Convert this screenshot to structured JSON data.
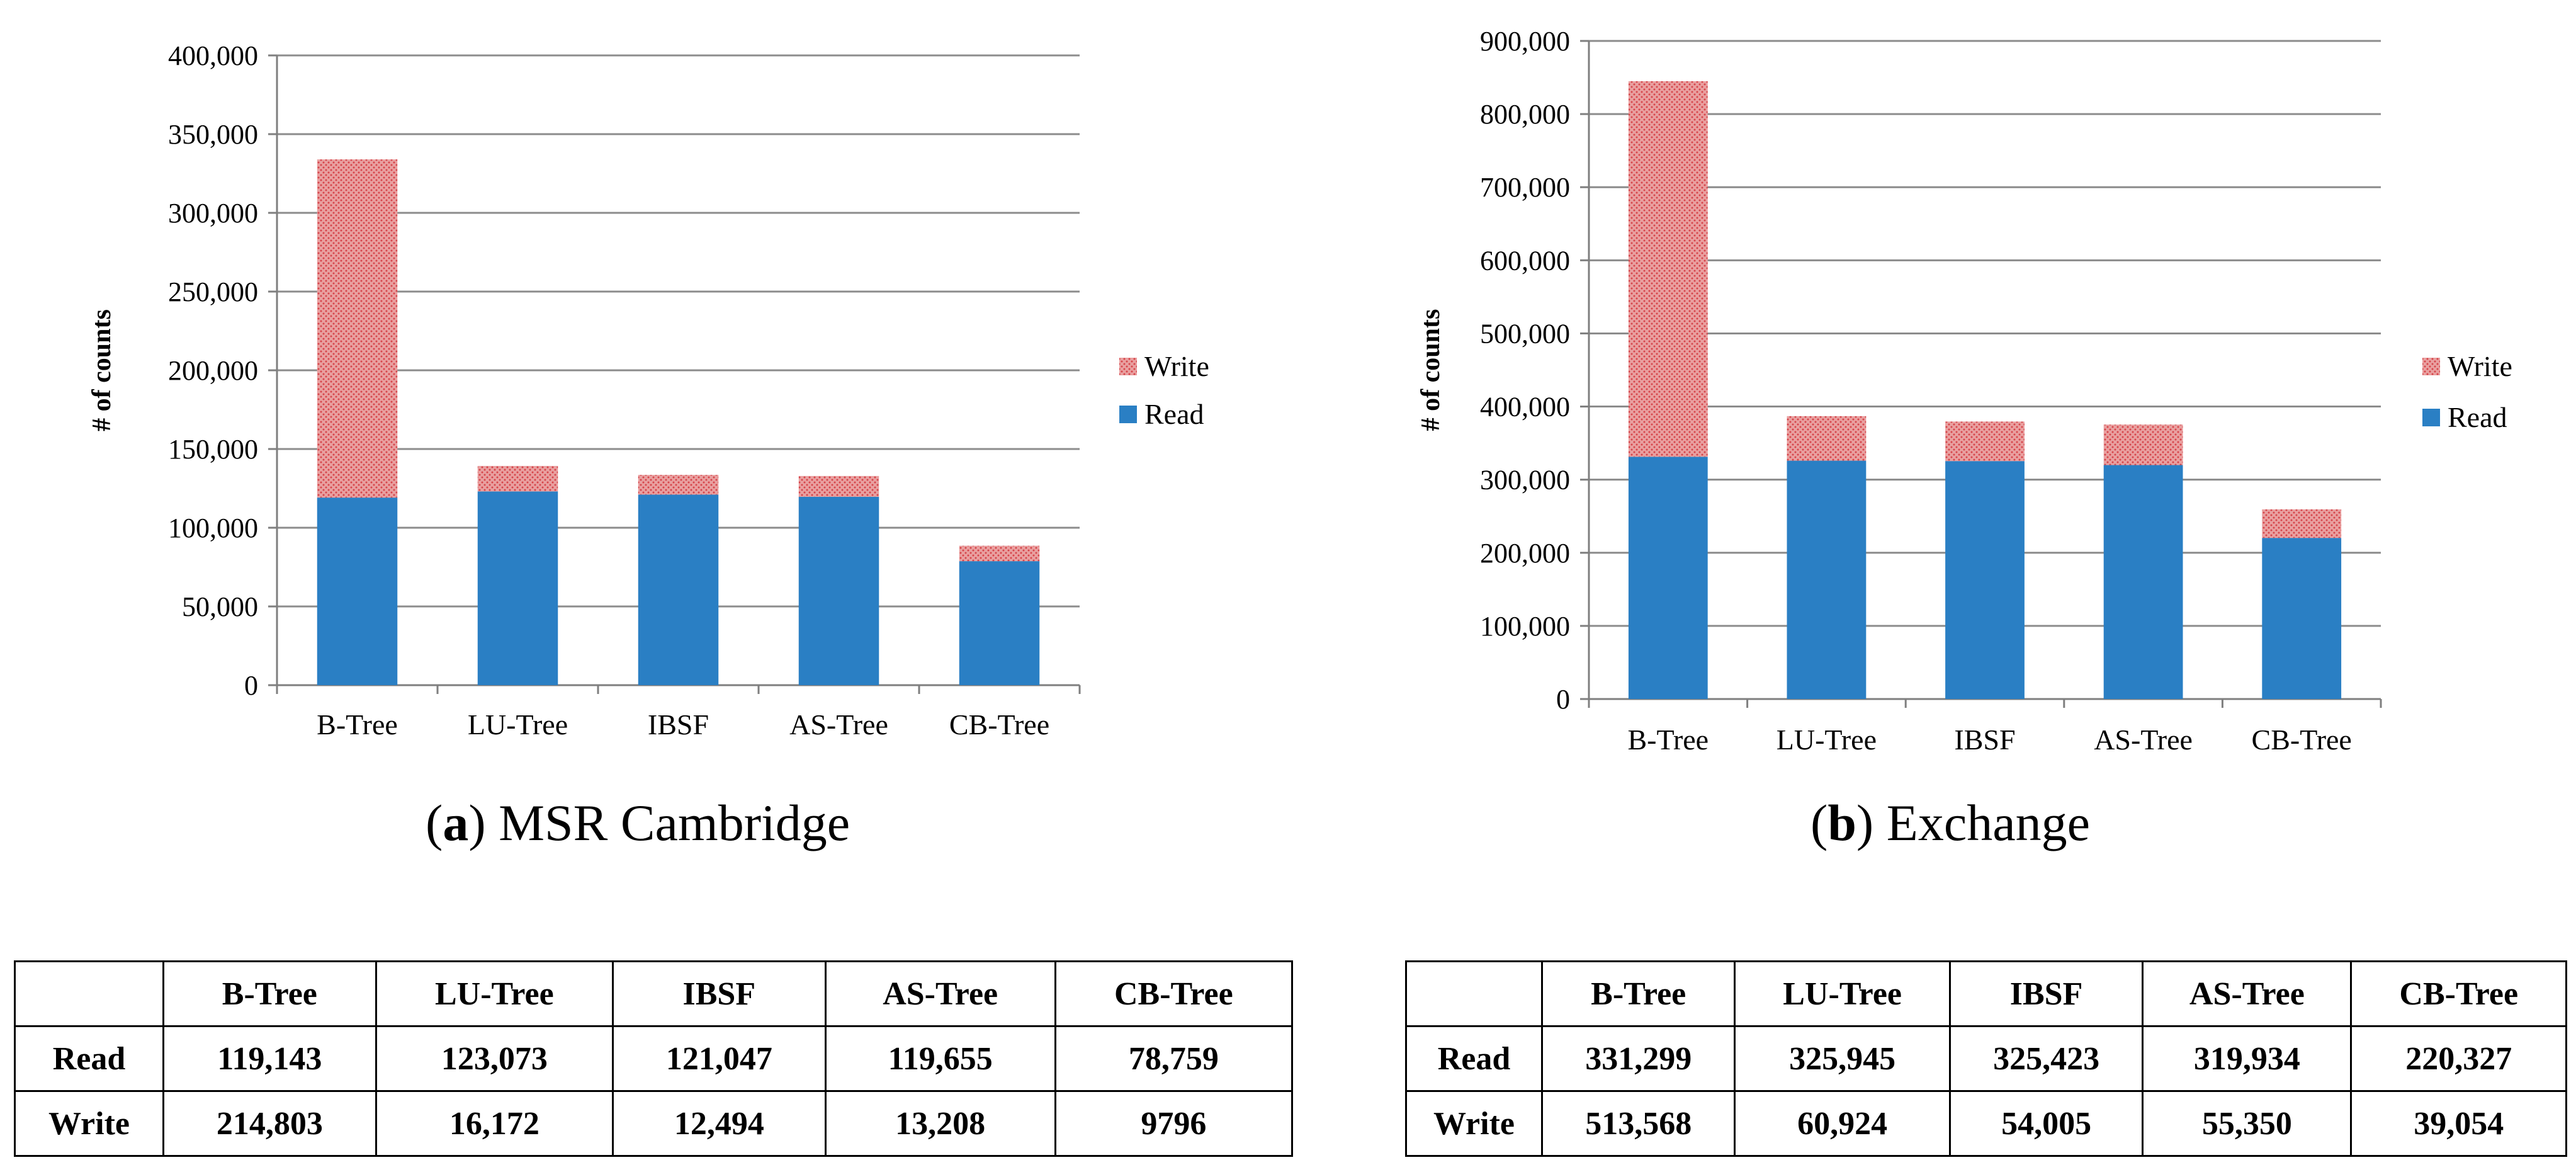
{
  "colors": {
    "read": "#2a7fc4",
    "write_fill": "#e9a0a0",
    "write_dots": "#d6454b",
    "grid": "#8c8c8c",
    "axis": "#7f7f7f"
  },
  "chart_data": [
    {
      "type": "bar",
      "stacked": true,
      "caption_letter": "a",
      "caption_text": ") MSR Cambridge",
      "categories": [
        "B-Tree",
        "LU-Tree",
        "IBSF",
        "AS-Tree",
        "CB-Tree"
      ],
      "series": [
        {
          "name": "Read",
          "values": [
            119143,
            123073,
            121047,
            119655,
            78759
          ]
        },
        {
          "name": "Write",
          "values": [
            214803,
            16172,
            12494,
            13208,
            9796
          ]
        }
      ],
      "ylabel": "# of counts",
      "ylim": [
        0,
        400000
      ],
      "yticks": [
        "0",
        "50,000",
        "100,000",
        "150,000",
        "200,000",
        "250,000",
        "300,000",
        "350,000",
        "400,000"
      ],
      "legend": [
        "Write",
        "Read"
      ],
      "legend_position": "right",
      "grid": true
    },
    {
      "type": "bar",
      "stacked": true,
      "caption_letter": "b",
      "caption_text": ") Exchange",
      "categories": [
        "B-Tree",
        "LU-Tree",
        "IBSF",
        "AS-Tree",
        "CB-Tree"
      ],
      "series": [
        {
          "name": "Read",
          "values": [
            331299,
            325945,
            325423,
            319934,
            220327
          ]
        },
        {
          "name": "Write",
          "values": [
            513568,
            60924,
            54005,
            55350,
            39054
          ]
        }
      ],
      "ylabel": "# of counts",
      "ylim": [
        0,
        900000
      ],
      "yticks": [
        "0",
        "100,000",
        "200,000",
        "300,000",
        "400,000",
        "500,000",
        "600,000",
        "700,000",
        "800,000",
        "900,000"
      ],
      "legend": [
        "Write",
        "Read"
      ],
      "legend_position": "right",
      "grid": true
    }
  ],
  "tables": [
    {
      "headers": [
        "",
        "B-Tree",
        "LU-Tree",
        "IBSF",
        "AS-Tree",
        "CB-Tree"
      ],
      "rows": [
        [
          "Read",
          "119,143",
          "123,073",
          "121,047",
          "119,655",
          "78,759"
        ],
        [
          "Write",
          "214,803",
          "16,172",
          "12,494",
          "13,208",
          "9796"
        ]
      ]
    },
    {
      "headers": [
        "",
        "B-Tree",
        "LU-Tree",
        "IBSF",
        "AS-Tree",
        "CB-Tree"
      ],
      "rows": [
        [
          "Read",
          "331,299",
          "325,945",
          "325,423",
          "319,934",
          "220,327"
        ],
        [
          "Write",
          "513,568",
          "60,924",
          "54,005",
          "55,350",
          "39,054"
        ]
      ]
    }
  ]
}
